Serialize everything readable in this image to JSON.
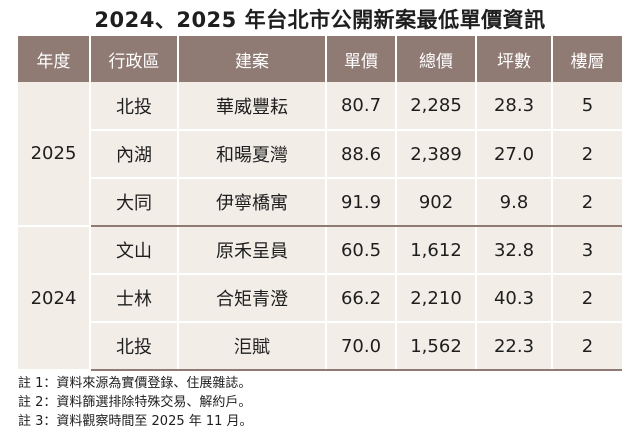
{
  "title": "2024、2025 年台北市公開新案最低單價資訊",
  "headers": [
    "年度",
    "行政區",
    "建案",
    "單價",
    "總價",
    "坪數",
    "樓層"
  ],
  "groups": [
    {
      "year": "2025",
      "rows": [
        {
          "district": "北投",
          "project": "華威豐耘",
          "unit_price": "80.7",
          "total_price": "2,285",
          "area": "28.3",
          "floor": "5"
        },
        {
          "district": "內湖",
          "project": "和暘夏灣",
          "unit_price": "88.6",
          "total_price": "2,389",
          "area": "27.0",
          "floor": "2"
        },
        {
          "district": "大同",
          "project": "伊寧橋寓",
          "unit_price": "91.9",
          "total_price": "902",
          "area": "9.8",
          "floor": "2"
        }
      ]
    },
    {
      "year": "2024",
      "rows": [
        {
          "district": "文山",
          "project": "原禾呈員",
          "unit_price": "60.5",
          "total_price": "1,612",
          "area": "32.8",
          "floor": "3"
        },
        {
          "district": "士林",
          "project": "合矩青澄",
          "unit_price": "66.2",
          "total_price": "2,210",
          "area": "40.3",
          "floor": "2"
        },
        {
          "district": "北投",
          "project": "洰賦",
          "unit_price": "70.0",
          "total_price": "1,562",
          "area": "22.3",
          "floor": "2"
        }
      ]
    }
  ],
  "notes": [
    "註 1：資料來源為實價登錄、住展雜誌。",
    "註 2：資料篩選排除特殊交易、解約戶。",
    "註 3：資料觀察時間至 2025 年 11 月。"
  ]
}
